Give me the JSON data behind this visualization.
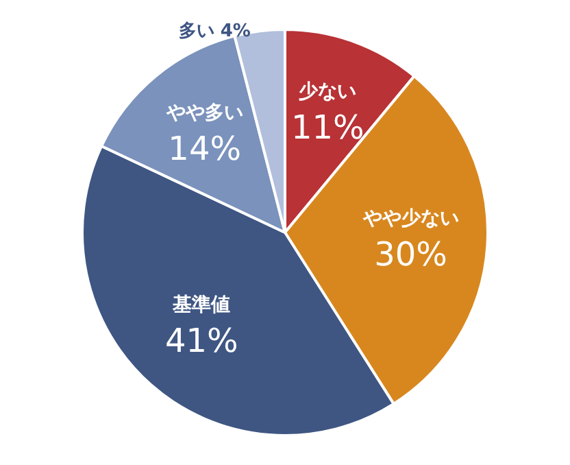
{
  "chart_data": {
    "type": "pie",
    "categories": [
      "少ない",
      "やや少ない",
      "基準値",
      "やや多い",
      "多い"
    ],
    "values": [
      11,
      30,
      41,
      14,
      4
    ],
    "value_labels": [
      "11%",
      "30%",
      "41%",
      "14%",
      "4%"
    ],
    "colors": [
      "#b83236",
      "#d8871f",
      "#3f5683",
      "#7a92bc",
      "#b1bfdc"
    ]
  }
}
